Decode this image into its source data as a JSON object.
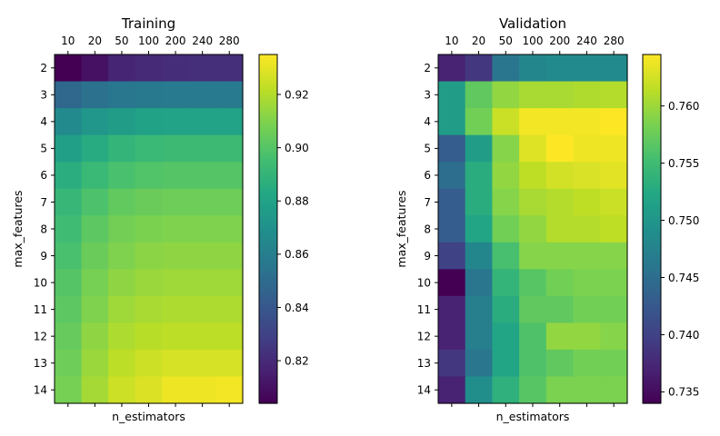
{
  "chart_data": [
    {
      "type": "heatmap",
      "title": "Training",
      "xlabel": "n_estimators",
      "ylabel": "max_features",
      "x_categories": [
        "10",
        "20",
        "50",
        "100",
        "200",
        "240",
        "280"
      ],
      "y_categories": [
        "2",
        "3",
        "4",
        "5",
        "6",
        "7",
        "8",
        "9",
        "10",
        "11",
        "12",
        "13",
        "14"
      ],
      "colormap": "viridis",
      "vmin": 0.804,
      "vmax": 0.935,
      "colorbar_ticks": [
        "0.82",
        "0.84",
        "0.86",
        "0.88",
        "0.90",
        "0.92"
      ],
      "colorbar_tick_values": [
        0.82,
        0.84,
        0.86,
        0.88,
        0.9,
        0.92
      ],
      "values": [
        [
          0.804,
          0.81,
          0.818,
          0.82,
          0.821,
          0.822,
          0.822
        ],
        [
          0.848,
          0.853,
          0.856,
          0.857,
          0.858,
          0.858,
          0.858
        ],
        [
          0.866,
          0.873,
          0.877,
          0.879,
          0.88,
          0.88,
          0.88
        ],
        [
          0.878,
          0.885,
          0.89,
          0.892,
          0.893,
          0.893,
          0.893
        ],
        [
          0.886,
          0.892,
          0.897,
          0.899,
          0.9,
          0.9,
          0.9
        ],
        [
          0.891,
          0.898,
          0.903,
          0.905,
          0.906,
          0.906,
          0.906
        ],
        [
          0.894,
          0.902,
          0.907,
          0.909,
          0.91,
          0.91,
          0.91
        ],
        [
          0.897,
          0.905,
          0.91,
          0.912,
          0.913,
          0.913,
          0.913
        ],
        [
          0.9,
          0.908,
          0.913,
          0.915,
          0.916,
          0.916,
          0.916
        ],
        [
          0.902,
          0.91,
          0.916,
          0.918,
          0.919,
          0.919,
          0.919
        ],
        [
          0.904,
          0.913,
          0.919,
          0.921,
          0.922,
          0.922,
          0.922
        ],
        [
          0.906,
          0.915,
          0.922,
          0.925,
          0.927,
          0.927,
          0.927
        ],
        [
          0.908,
          0.917,
          0.925,
          0.928,
          0.932,
          0.932,
          0.933
        ]
      ]
    },
    {
      "type": "heatmap",
      "title": "Validation",
      "xlabel": "n_estimators",
      "ylabel": "max_features",
      "x_categories": [
        "10",
        "20",
        "50",
        "100",
        "200",
        "240",
        "280"
      ],
      "y_categories": [
        "2",
        "3",
        "4",
        "5",
        "6",
        "7",
        "8",
        "9",
        "10",
        "11",
        "12",
        "13",
        "14"
      ],
      "colormap": "viridis",
      "vmin": 0.734,
      "vmax": 0.7645,
      "colorbar_ticks": [
        "0.735",
        "0.740",
        "0.745",
        "0.750",
        "0.755",
        "0.760"
      ],
      "colorbar_tick_values": [
        0.735,
        0.74,
        0.745,
        0.75,
        0.755,
        0.76
      ],
      "values": [
        [
          0.737,
          0.739,
          0.746,
          0.748,
          0.7485,
          0.7485,
          0.7485
        ],
        [
          0.751,
          0.757,
          0.7595,
          0.7605,
          0.7605,
          0.7608,
          0.761
        ],
        [
          0.751,
          0.758,
          0.762,
          0.764,
          0.764,
          0.764,
          0.7645
        ],
        [
          0.743,
          0.751,
          0.759,
          0.763,
          0.7645,
          0.7638,
          0.7638
        ],
        [
          0.745,
          0.753,
          0.7595,
          0.7615,
          0.7625,
          0.7628,
          0.7632
        ],
        [
          0.743,
          0.753,
          0.759,
          0.7605,
          0.761,
          0.7615,
          0.762
        ],
        [
          0.743,
          0.752,
          0.758,
          0.7595,
          0.761,
          0.761,
          0.7615
        ],
        [
          0.74,
          0.748,
          0.7555,
          0.759,
          0.759,
          0.759,
          0.759
        ],
        [
          0.734,
          0.746,
          0.754,
          0.7565,
          0.758,
          0.7585,
          0.7585
        ],
        [
          0.737,
          0.747,
          0.753,
          0.757,
          0.757,
          0.758,
          0.758
        ],
        [
          0.737,
          0.747,
          0.752,
          0.756,
          0.7595,
          0.7595,
          0.759
        ],
        [
          0.739,
          0.746,
          0.752,
          0.756,
          0.757,
          0.758,
          0.758
        ],
        [
          0.737,
          0.749,
          0.7535,
          0.7565,
          0.7585,
          0.7585,
          0.7585
        ]
      ]
    }
  ]
}
